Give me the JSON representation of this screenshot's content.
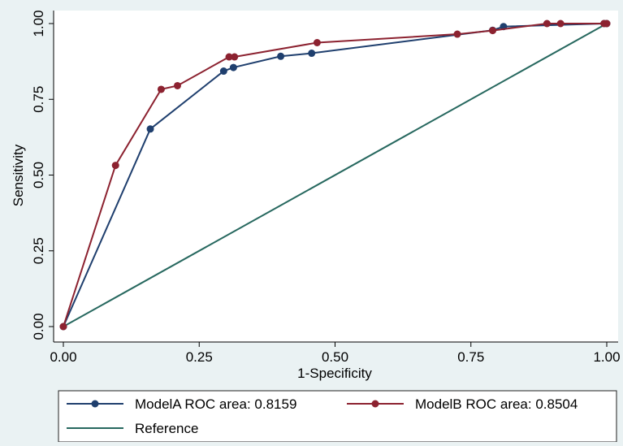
{
  "chart_data": {
    "type": "line",
    "title": "",
    "xlabel": "1-Specificity",
    "ylabel": "Sensitivity",
    "xlim": [
      0,
      1
    ],
    "ylim": [
      0,
      1
    ],
    "x_ticks": [
      "0.00",
      "0.25",
      "0.50",
      "0.75",
      "1.00"
    ],
    "y_ticks": [
      "0.00",
      "0.25",
      "0.50",
      "0.75",
      "1.00"
    ],
    "grid": false,
    "legend_position": "bottom",
    "series": [
      {
        "name": "ModelA ROC area: 0.8159",
        "color": "#1f3f6e",
        "markers": true,
        "x": [
          0.0,
          0.16,
          0.295,
          0.313,
          0.4,
          0.457,
          0.79,
          0.81,
          0.995,
          1.0
        ],
        "y": [
          0.0,
          0.652,
          0.843,
          0.855,
          0.892,
          0.902,
          0.978,
          0.99,
          1.0,
          1.0
        ]
      },
      {
        "name": "ModelB ROC area: 0.8504",
        "color": "#8c2230",
        "markers": true,
        "x": [
          0.0,
          0.096,
          0.18,
          0.21,
          0.305,
          0.315,
          0.467,
          0.725,
          0.79,
          0.89,
          0.915,
          0.995,
          1.0
        ],
        "y": [
          0.0,
          0.532,
          0.783,
          0.795,
          0.89,
          0.89,
          0.937,
          0.965,
          0.977,
          1.0,
          1.0,
          1.0,
          1.0
        ]
      },
      {
        "name": "Reference",
        "color": "#27685f",
        "markers": false,
        "x": [
          0.0,
          1.0
        ],
        "y": [
          0.0,
          1.0
        ]
      }
    ]
  }
}
